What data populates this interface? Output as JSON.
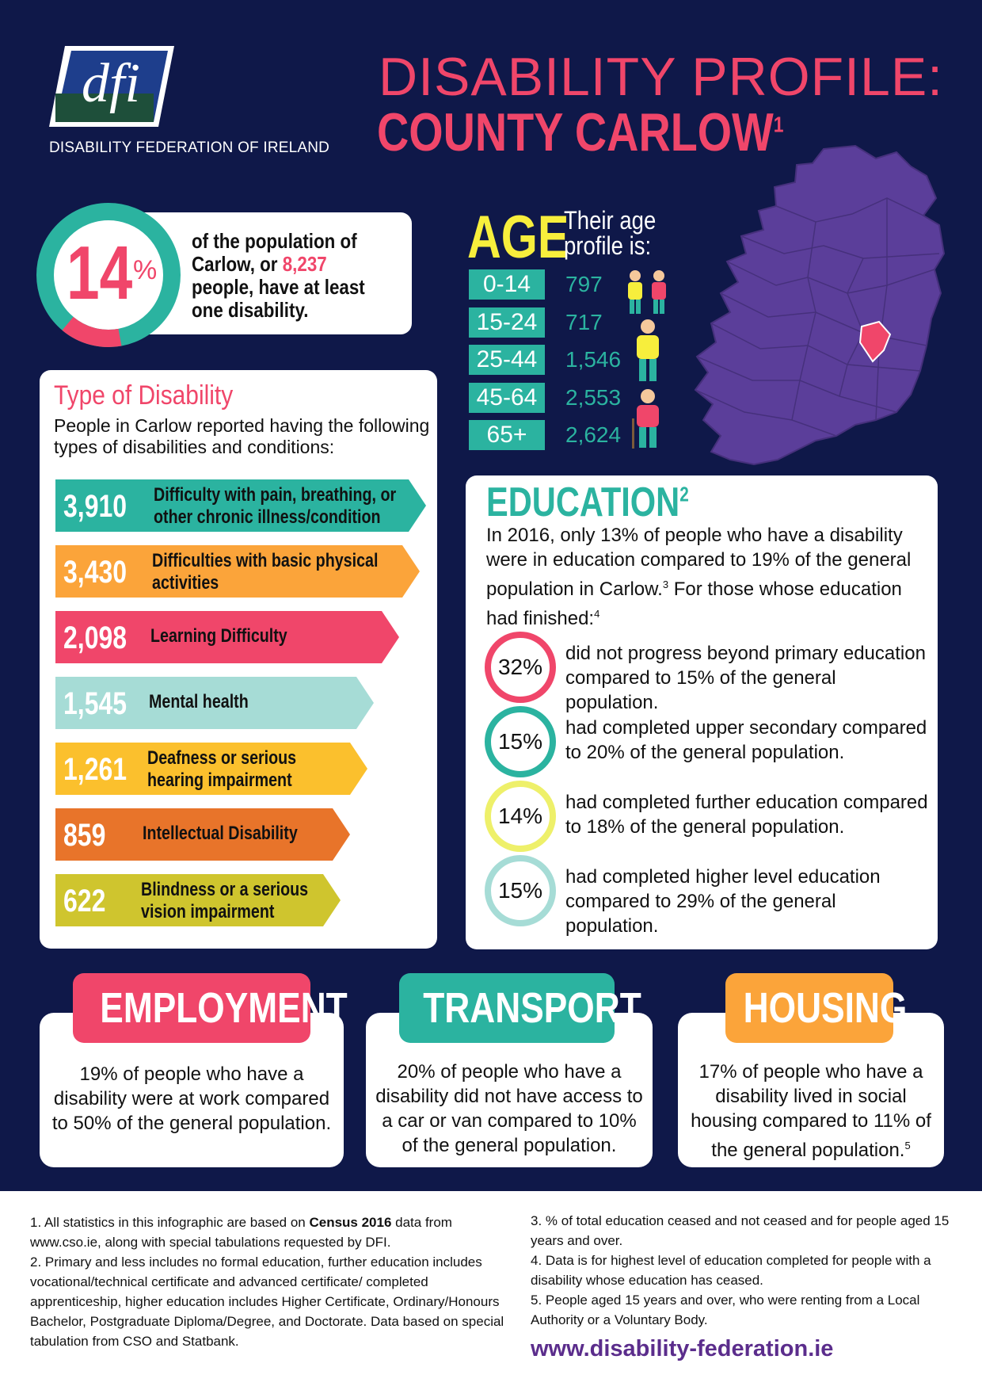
{
  "brand": {
    "logo_text": "dfi",
    "org_name": "DISABILITY FEDERATION OF IRELAND",
    "colors": {
      "navy": "#0f1849",
      "pink": "#f0466a",
      "teal": "#2bb3a0",
      "yellow": "#f7ee3c",
      "purple": "#5b2d8c"
    }
  },
  "title": {
    "line1": "DISABILITY PROFILE:",
    "line2": "COUNTY CARLOW",
    "line2_sup": "1"
  },
  "population": {
    "percent": "14",
    "percent_sign": "%",
    "fill_fraction": 0.14,
    "text_before": "of the population of Carlow, or",
    "count": "8,237",
    "text_after": "people, have at least one disability."
  },
  "types": {
    "title": "Type of Disability",
    "description": "People in Carlow reported having the following types of disabilities and conditions:",
    "items": [
      {
        "value": "3,910",
        "label": "Difficulty with pain, breathing, or",
        "label2": "other chronic illness/condition",
        "color": "#2bb3a0"
      },
      {
        "value": "3,430",
        "label": "Difficulties with basic physical",
        "label2": "activities",
        "color": "#fba43a"
      },
      {
        "value": "2,098",
        "label": "Learning Difficulty",
        "label2": "",
        "color": "#f0466a"
      },
      {
        "value": "1,545",
        "label": "Mental health",
        "label2": "",
        "color": "#a6dcd6"
      },
      {
        "value": "1,261",
        "label": "Deafness or serious",
        "label2": "hearing impairment",
        "color": "#fbc02d"
      },
      {
        "value": "859",
        "label": "Intellectual Disability",
        "label2": "",
        "color": "#e8742a"
      },
      {
        "value": "622",
        "label": "Blindness or a serious",
        "label2": "vision impairment",
        "color": "#cfc52e"
      }
    ]
  },
  "age": {
    "title": "AGE",
    "subtitle_line1": "Their age",
    "subtitle_line2": "profile is:",
    "rows": [
      {
        "range": "0-14",
        "value": "797"
      },
      {
        "range": "15-24",
        "value": "717"
      },
      {
        "range": "25-44",
        "value": "1,546"
      },
      {
        "range": "45-64",
        "value": "2,553"
      },
      {
        "range": "65+",
        "value": "2,624"
      }
    ]
  },
  "education": {
    "title": "EDUCATION",
    "title_sup": "2",
    "intro": "In 2016, only 13% of people who have a disability were in education compared to 19% of the general population in Carlow.",
    "intro_sup": "3",
    "intro_tail": " For those whose education had finished:",
    "intro_tail_sup": "4",
    "stats": [
      {
        "percent": "32%",
        "text": "did not progress beyond primary education compared to 15% of the general population.",
        "color": "#f0466a"
      },
      {
        "percent": "15%",
        "text": "had completed upper secondary compared to 20% of the general population.",
        "color": "#2bb3a0"
      },
      {
        "percent": "14%",
        "text": "had completed further education compared to 18% of the general population.",
        "color": "#eef06a"
      },
      {
        "percent": "15%",
        "text": "had completed higher level education compared to 29% of the general population.",
        "color": "#a6dcd6"
      }
    ]
  },
  "employment": {
    "label": "EMPLOYMENT",
    "text": "19% of people who have a disability were at work compared to 50% of the general population."
  },
  "transport": {
    "label": "TRANSPORT",
    "text": "20% of people who have a disability did not have access to a car or van compared to 10% of the general population."
  },
  "housing": {
    "label": "HOUSING",
    "text": "17% of people who have a disability lived in social housing compared to 11% of the general population.",
    "sup": "5"
  },
  "footnotes": {
    "n1a": "1. All statistics in this infographic are based on ",
    "n1b": "Census 2016",
    "n1c": " data from www.cso.ie, along with special tabulations requested by DFI.",
    "n2": "2. Primary and less includes no formal education, further education includes vocational/technical certificate and advanced certificate/ completed apprenticeship, higher education includes Higher Certificate, Ordinary/Honours Bachelor, Postgraduate Diploma/Degree, and Doctorate. Data based on special tabulation from CSO and Statbank.",
    "n3": "3. % of total education ceased and not ceased and for people aged 15 years and over.",
    "n4": "4. Data is for highest level of education completed for people with a disability whose education has ceased.",
    "n5": "5. People aged 15 years and over, who were renting from a Local Authority or a Voluntary Body."
  },
  "website": "www.disability-federation.ie"
}
